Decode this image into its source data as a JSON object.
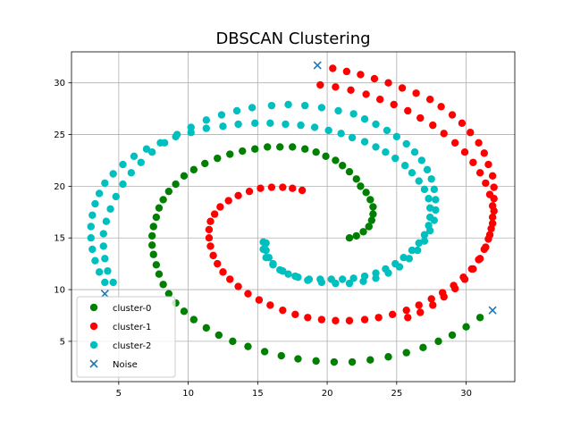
{
  "chart_data": {
    "type": "scatter",
    "title": "DBSCAN Clustering",
    "xlabel": "",
    "ylabel": "",
    "xlim": [
      1.6,
      33.5
    ],
    "ylim": [
      1.1,
      33.0
    ],
    "xticks": [
      5,
      10,
      15,
      20,
      25,
      30
    ],
    "yticks": [
      5,
      10,
      15,
      20,
      25,
      30
    ],
    "grid": true,
    "legend_position": "lower-left",
    "series": [
      {
        "name": "cluster-0",
        "color": "#008000",
        "marker": "circle",
        "points": [
          [
            21.6,
            15.0
          ],
          [
            22.1,
            15.2
          ],
          [
            22.6,
            15.6
          ],
          [
            23.0,
            16.1
          ],
          [
            23.2,
            16.7
          ],
          [
            23.3,
            17.3
          ],
          [
            23.3,
            18.0
          ],
          [
            23.1,
            18.7
          ],
          [
            22.8,
            19.4
          ],
          [
            22.4,
            20.0
          ],
          [
            22.1,
            20.7
          ],
          [
            21.6,
            21.4
          ],
          [
            21.1,
            22.0
          ],
          [
            20.6,
            22.5
          ],
          [
            19.9,
            22.9
          ],
          [
            19.2,
            23.3
          ],
          [
            18.4,
            23.6
          ],
          [
            17.5,
            23.8
          ],
          [
            16.6,
            23.8
          ],
          [
            15.7,
            23.8
          ],
          [
            14.8,
            23.6
          ],
          [
            13.9,
            23.4
          ],
          [
            13.0,
            23.1
          ],
          [
            12.1,
            22.7
          ],
          [
            11.2,
            22.2
          ],
          [
            10.4,
            21.6
          ],
          [
            9.7,
            21.0
          ],
          [
            9.1,
            20.2
          ],
          [
            8.6,
            19.5
          ],
          [
            8.2,
            18.7
          ],
          [
            7.9,
            17.9
          ],
          [
            7.7,
            17.0
          ],
          [
            7.5,
            16.1
          ],
          [
            7.4,
            15.2
          ],
          [
            7.4,
            14.3
          ],
          [
            7.5,
            13.4
          ],
          [
            7.7,
            12.4
          ],
          [
            7.9,
            11.5
          ],
          [
            8.2,
            10.5
          ],
          [
            8.6,
            9.6
          ],
          [
            9.1,
            8.7
          ],
          [
            9.7,
            7.9
          ],
          [
            10.4,
            7.1
          ],
          [
            11.3,
            6.3
          ],
          [
            12.2,
            5.6
          ],
          [
            13.2,
            5.0
          ],
          [
            14.3,
            4.5
          ],
          [
            15.5,
            4.0
          ],
          [
            16.7,
            3.6
          ],
          [
            17.9,
            3.3
          ],
          [
            19.2,
            3.1
          ],
          [
            20.5,
            3.0
          ],
          [
            21.8,
            3.0
          ],
          [
            23.1,
            3.2
          ],
          [
            24.4,
            3.5
          ],
          [
            25.7,
            3.9
          ],
          [
            26.9,
            4.4
          ],
          [
            28.0,
            5.0
          ],
          [
            29.0,
            5.6
          ],
          [
            30.0,
            6.4
          ],
          [
            31.0,
            7.3
          ]
        ]
      },
      {
        "name": "cluster-1",
        "color": "#ff0000",
        "marker": "circle",
        "points": [
          [
            18.2,
            19.6
          ],
          [
            17.5,
            19.8
          ],
          [
            16.8,
            19.9
          ],
          [
            16.0,
            19.9
          ],
          [
            15.2,
            19.8
          ],
          [
            14.4,
            19.5
          ],
          [
            13.6,
            19.1
          ],
          [
            12.9,
            18.6
          ],
          [
            12.3,
            18.0
          ],
          [
            11.9,
            17.3
          ],
          [
            11.6,
            16.6
          ],
          [
            11.5,
            15.8
          ],
          [
            11.5,
            15.0
          ],
          [
            11.6,
            14.2
          ],
          [
            11.8,
            13.3
          ],
          [
            12.1,
            12.5
          ],
          [
            12.5,
            11.7
          ],
          [
            13.0,
            11.0
          ],
          [
            13.6,
            10.3
          ],
          [
            14.3,
            9.6
          ],
          [
            15.1,
            9.0
          ],
          [
            15.9,
            8.5
          ],
          [
            16.8,
            8.0
          ],
          [
            17.7,
            7.6
          ],
          [
            18.6,
            7.3
          ],
          [
            19.6,
            7.1
          ],
          [
            20.6,
            7.0
          ],
          [
            21.6,
            7.0
          ],
          [
            22.7,
            7.1
          ],
          [
            23.7,
            7.3
          ],
          [
            24.7,
            7.6
          ],
          [
            25.7,
            8.0
          ],
          [
            26.6,
            8.5
          ],
          [
            27.5,
            9.1
          ],
          [
            28.3,
            9.7
          ],
          [
            29.1,
            10.4
          ],
          [
            29.8,
            11.2
          ],
          [
            30.4,
            12.0
          ],
          [
            30.9,
            12.9
          ],
          [
            31.3,
            13.9
          ],
          [
            31.6,
            14.9
          ],
          [
            31.8,
            15.9
          ],
          [
            31.9,
            17.0
          ],
          [
            31.9,
            18.1
          ],
          [
            31.7,
            19.2
          ],
          [
            31.4,
            20.3
          ],
          [
            31.0,
            21.3
          ],
          [
            30.5,
            22.3
          ],
          [
            29.9,
            23.3
          ],
          [
            29.2,
            24.2
          ],
          [
            28.4,
            25.1
          ],
          [
            27.6,
            25.9
          ],
          [
            26.7,
            26.6
          ],
          [
            25.8,
            27.3
          ],
          [
            24.8,
            27.9
          ],
          [
            23.8,
            28.4
          ],
          [
            22.8,
            28.9
          ],
          [
            21.7,
            29.3
          ],
          [
            20.6,
            29.6
          ],
          [
            19.5,
            29.8
          ],
          [
            20.4,
            31.4
          ],
          [
            21.4,
            31.1
          ],
          [
            22.4,
            30.8
          ],
          [
            23.4,
            30.4
          ],
          [
            24.4,
            30.0
          ],
          [
            25.4,
            29.5
          ],
          [
            26.4,
            29.0
          ],
          [
            27.4,
            28.4
          ],
          [
            28.2,
            27.7
          ],
          [
            29.0,
            26.9
          ],
          [
            29.7,
            26.1
          ],
          [
            30.3,
            25.2
          ],
          [
            30.9,
            24.2
          ],
          [
            31.3,
            23.2
          ],
          [
            31.6,
            22.1
          ],
          [
            31.9,
            21.0
          ],
          [
            32.0,
            19.9
          ],
          [
            32.0,
            18.8
          ],
          [
            32.0,
            17.6
          ],
          [
            31.9,
            16.4
          ],
          [
            31.7,
            15.3
          ],
          [
            31.4,
            14.1
          ],
          [
            31.0,
            13.0
          ],
          [
            30.5,
            12.0
          ],
          [
            29.9,
            11.0
          ],
          [
            29.2,
            10.1
          ],
          [
            28.4,
            9.3
          ],
          [
            27.6,
            8.5
          ],
          [
            26.7,
            7.8
          ],
          [
            25.8,
            7.3
          ]
        ]
      },
      {
        "name": "cluster-2",
        "color": "#00bfbf",
        "marker": "circle",
        "points": [
          [
            15.6,
            14.5
          ],
          [
            15.6,
            13.8
          ],
          [
            15.8,
            13.1
          ],
          [
            16.1,
            12.5
          ],
          [
            16.6,
            11.9
          ],
          [
            17.2,
            11.5
          ],
          [
            17.9,
            11.2
          ],
          [
            18.7,
            11.0
          ],
          [
            19.5,
            11.0
          ],
          [
            20.3,
            11.0
          ],
          [
            21.1,
            11.0
          ],
          [
            21.9,
            11.1
          ],
          [
            22.7,
            11.3
          ],
          [
            23.5,
            11.6
          ],
          [
            24.2,
            12.0
          ],
          [
            24.9,
            12.5
          ],
          [
            25.5,
            13.1
          ],
          [
            26.1,
            13.8
          ],
          [
            26.6,
            14.5
          ],
          [
            27.0,
            15.3
          ],
          [
            27.3,
            16.2
          ],
          [
            27.4,
            17.0
          ],
          [
            27.4,
            17.9
          ],
          [
            27.3,
            18.8
          ],
          [
            27.0,
            19.7
          ],
          [
            26.6,
            20.5
          ],
          [
            26.1,
            21.3
          ],
          [
            25.6,
            22.0
          ],
          [
            24.9,
            22.7
          ],
          [
            24.2,
            23.3
          ],
          [
            23.5,
            23.8
          ],
          [
            22.7,
            24.3
          ],
          [
            21.8,
            24.7
          ],
          [
            21.0,
            25.1
          ],
          [
            20.1,
            25.4
          ],
          [
            19.1,
            25.7
          ],
          [
            18.1,
            25.9
          ],
          [
            17.0,
            26.0
          ],
          [
            15.9,
            26.1
          ],
          [
            14.8,
            26.1
          ],
          [
            13.6,
            26.0
          ],
          [
            12.5,
            25.8
          ],
          [
            11.3,
            25.6
          ],
          [
            10.2,
            25.2
          ],
          [
            9.1,
            24.8
          ],
          [
            8.0,
            24.2
          ],
          [
            7.0,
            23.6
          ],
          [
            6.1,
            22.9
          ],
          [
            5.3,
            22.1
          ],
          [
            4.6,
            21.2
          ],
          [
            4.0,
            20.3
          ],
          [
            3.6,
            19.3
          ],
          [
            3.3,
            18.3
          ],
          [
            3.1,
            17.2
          ],
          [
            3.0,
            16.1
          ],
          [
            3.0,
            15.0
          ],
          [
            3.1,
            13.9
          ],
          [
            3.3,
            12.8
          ],
          [
            3.6,
            11.7
          ],
          [
            4.0,
            10.7
          ],
          [
            21.9,
            27.0
          ],
          [
            22.7,
            26.5
          ],
          [
            23.5,
            26.0
          ],
          [
            24.3,
            25.4
          ],
          [
            25.0,
            24.8
          ],
          [
            25.7,
            24.1
          ],
          [
            26.3,
            23.3
          ],
          [
            26.8,
            22.5
          ],
          [
            27.2,
            21.6
          ],
          [
            27.5,
            20.7
          ],
          [
            27.7,
            19.7
          ],
          [
            27.8,
            18.7
          ],
          [
            27.8,
            17.7
          ],
          [
            27.7,
            16.7
          ],
          [
            27.4,
            15.7
          ],
          [
            27.0,
            14.7
          ],
          [
            26.5,
            13.8
          ],
          [
            25.9,
            13.0
          ],
          [
            25.2,
            12.2
          ],
          [
            24.4,
            11.6
          ],
          [
            23.5,
            11.1
          ],
          [
            22.6,
            10.8
          ],
          [
            21.6,
            10.6
          ],
          [
            20.6,
            10.6
          ],
          [
            19.6,
            10.7
          ],
          [
            18.6,
            10.9
          ],
          [
            17.7,
            11.3
          ],
          [
            16.8,
            11.8
          ],
          [
            16.1,
            12.4
          ],
          [
            15.6,
            13.1
          ],
          [
            15.4,
            13.9
          ],
          [
            15.4,
            14.6
          ],
          [
            14.6,
            27.6
          ],
          [
            13.5,
            27.3
          ],
          [
            12.4,
            26.9
          ],
          [
            11.3,
            26.4
          ],
          [
            10.2,
            25.7
          ],
          [
            9.2,
            25.0
          ],
          [
            8.3,
            24.2
          ],
          [
            7.4,
            23.3
          ],
          [
            6.6,
            22.3
          ],
          [
            5.9,
            21.3
          ],
          [
            5.3,
            20.2
          ],
          [
            4.8,
            19.0
          ],
          [
            4.4,
            17.8
          ],
          [
            4.1,
            16.6
          ],
          [
            3.9,
            15.4
          ],
          [
            3.9,
            14.2
          ],
          [
            4.0,
            13.0
          ],
          [
            4.2,
            11.8
          ],
          [
            4.6,
            10.7
          ],
          [
            16.0,
            27.8
          ],
          [
            17.2,
            27.9
          ],
          [
            18.4,
            27.8
          ],
          [
            19.6,
            27.6
          ],
          [
            20.8,
            27.3
          ]
        ]
      },
      {
        "name": "Noise",
        "color": "#1f77b4",
        "marker": "x",
        "points": [
          [
            19.3,
            31.7
          ],
          [
            31.9,
            8.0
          ],
          [
            4.0,
            9.6
          ]
        ]
      }
    ]
  }
}
